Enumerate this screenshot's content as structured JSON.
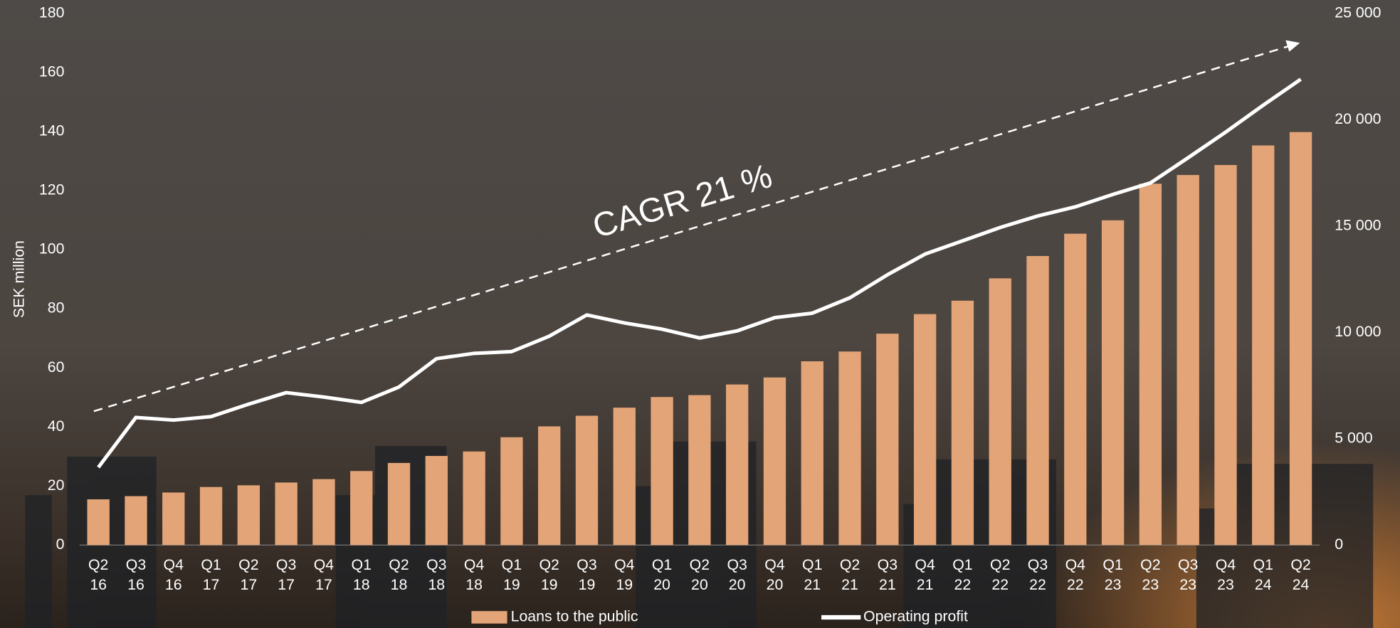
{
  "chart_data": {
    "type": "bar-line",
    "y_label": "SEK million",
    "annotation": "CAGR 21 %",
    "categories": [
      "Q2 16",
      "Q3 16",
      "Q4 16",
      "Q1 17",
      "Q2 17",
      "Q3 17",
      "Q4 17",
      "Q1 18",
      "Q2 18",
      "Q3 18",
      "Q4 18",
      "Q1 19",
      "Q2 19",
      "Q3 19",
      "Q4 19",
      "Q1 20",
      "Q2 20",
      "Q3 20",
      "Q4 20",
      "Q1 21",
      "Q2 21",
      "Q3 21",
      "Q4 21",
      "Q1 22",
      "Q2 22",
      "Q3 22",
      "Q4 22",
      "Q1 23",
      "Q2 23",
      "Q3 23",
      "Q4 23",
      "Q1 24",
      "Q2 24"
    ],
    "series": [
      {
        "name": "Loans to the public",
        "type": "bar",
        "axis": "y2",
        "color": "#e3a477",
        "values": [
          2150,
          2300,
          2470,
          2730,
          2810,
          2940,
          3100,
          3480,
          3860,
          4190,
          4400,
          5070,
          5580,
          6080,
          6460,
          6960,
          7050,
          7550,
          7880,
          8640,
          9100,
          9940,
          10860,
          11490,
          12540,
          13590,
          14640,
          15270,
          16990,
          17400,
          17870,
          18790,
          19420
        ]
      },
      {
        "name": "Operating profit",
        "type": "line",
        "axis": "y",
        "color": "#ffffff",
        "values": [
          26.3,
          43.2,
          42.3,
          43.5,
          47.7,
          51.6,
          50.1,
          48.3,
          53.5,
          63.1,
          64.9,
          65.5,
          70.7,
          77.9,
          75.2,
          73.1,
          70.1,
          72.5,
          77.0,
          78.5,
          83.7,
          91.5,
          98.5,
          103.0,
          107.5,
          111.4,
          114.5,
          118.7,
          122.6,
          131.1,
          139.8,
          148.9,
          157.7
        ]
      }
    ],
    "ylim": [
      0,
      180
    ],
    "yticks": [
      0,
      20,
      40,
      60,
      80,
      100,
      120,
      140,
      160,
      180
    ],
    "y2lim": [
      0,
      25000
    ],
    "y2ticks": [
      0,
      {
        "value": 5000,
        "label": "5 000"
      },
      {
        "value": 10000,
        "label": "10 000"
      },
      {
        "value": 15000,
        "label": "15 000"
      },
      {
        "value": 20000,
        "label": "20 000"
      },
      {
        "value": 25000,
        "label": "25 000"
      }
    ],
    "legend": "bottom"
  }
}
